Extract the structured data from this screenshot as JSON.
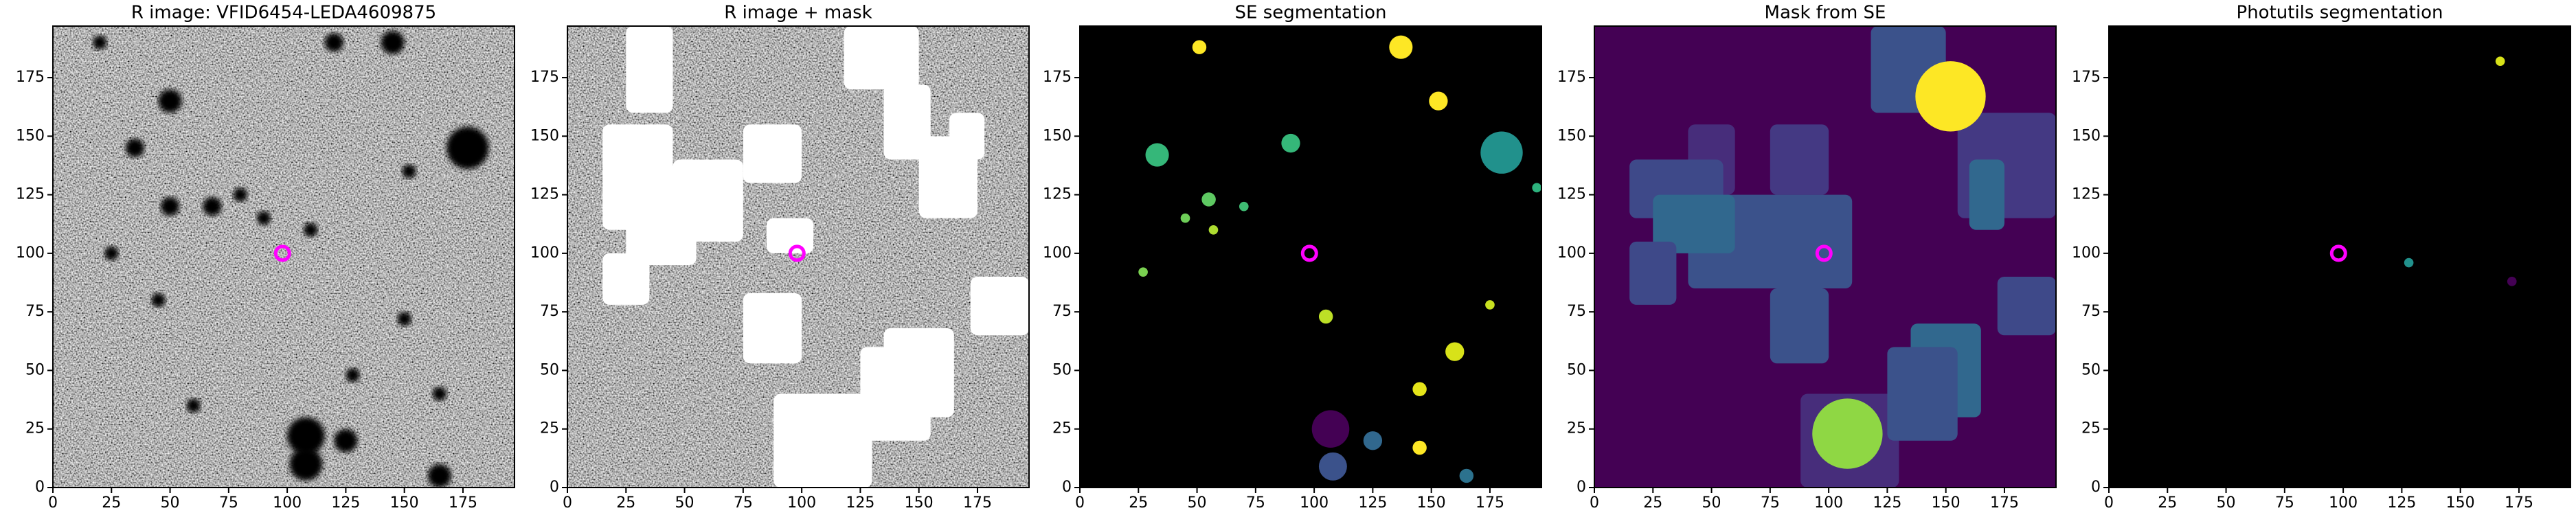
{
  "chart_data": [
    {
      "type": "image",
      "title": "R image: VFID6454-LEDA4609875",
      "xlim": [
        0,
        197
      ],
      "ylim": [
        0,
        197
      ],
      "xticks": [
        0,
        25,
        50,
        75,
        100,
        125,
        150,
        175
      ],
      "yticks": [
        0,
        25,
        50,
        75,
        100,
        125,
        150,
        175
      ],
      "x": [
        98
      ],
      "y": [
        100
      ],
      "color": "#ff00ff"
    },
    {
      "type": "image",
      "title": "R image + mask",
      "xlim": [
        0,
        197
      ],
      "ylim": [
        0,
        197
      ],
      "xticks": [
        0,
        25,
        50,
        75,
        100,
        125,
        150,
        175
      ],
      "yticks": [
        0,
        25,
        50,
        75,
        100,
        125,
        150,
        175
      ],
      "x": [
        98
      ],
      "y": [
        100
      ],
      "color": "#ff00ff"
    },
    {
      "type": "image",
      "title": "SE segmentation",
      "xlim": [
        0,
        197
      ],
      "ylim": [
        0,
        197
      ],
      "xticks": [
        0,
        25,
        50,
        75,
        100,
        125,
        150,
        175
      ],
      "yticks": [
        0,
        25,
        50,
        75,
        100,
        125,
        150,
        175
      ],
      "x": [
        98
      ],
      "y": [
        100
      ],
      "color": "#ff00ff"
    },
    {
      "type": "image",
      "title": "Mask from SE",
      "xlim": [
        0,
        197
      ],
      "ylim": [
        0,
        197
      ],
      "xticks": [
        0,
        25,
        50,
        75,
        100,
        125,
        150,
        175
      ],
      "yticks": [
        0,
        25,
        50,
        75,
        100,
        125,
        150,
        175
      ],
      "x": [
        98
      ],
      "y": [
        100
      ],
      "color": "#ff00ff"
    },
    {
      "type": "image",
      "title": "Photutils segmentation",
      "xlim": [
        0,
        197
      ],
      "ylim": [
        0,
        197
      ],
      "xticks": [
        0,
        25,
        50,
        75,
        100,
        125,
        150,
        175
      ],
      "yticks": [
        0,
        25,
        50,
        75,
        100,
        125,
        150,
        175
      ],
      "x": [
        98
      ],
      "y": [
        100
      ],
      "color": "#ff00ff"
    }
  ]
}
